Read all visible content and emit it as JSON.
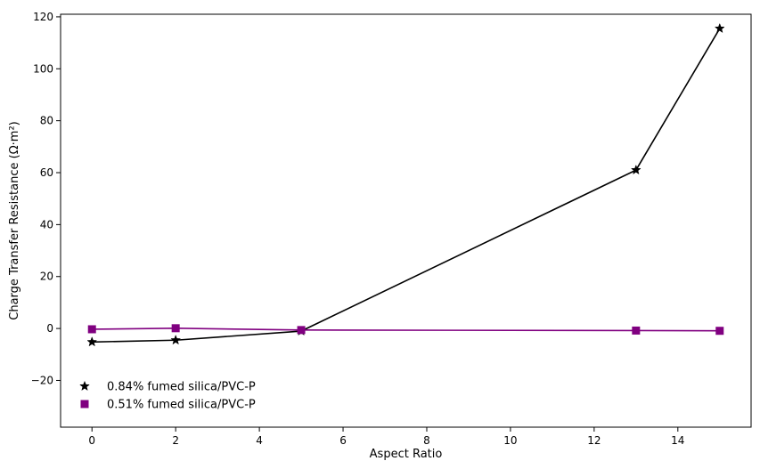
{
  "chart_data": {
    "type": "line",
    "title": "",
    "xlabel": "Aspect Ratio",
    "ylabel": "Charge Transfer Resistance (Ω·m²)",
    "xlim": [
      -0.75,
      15.75
    ],
    "ylim": [
      -38,
      121
    ],
    "xticks": [
      0,
      2,
      4,
      6,
      8,
      10,
      12,
      14
    ],
    "yticks": [
      -20,
      0,
      20,
      40,
      60,
      80,
      100,
      120
    ],
    "grid": false,
    "legend_position": "lower-left",
    "series": [
      {
        "name": "0.84% fumed silica/PVC-P",
        "color": "#000000",
        "marker": "star",
        "x": [
          0,
          2,
          5,
          13,
          15
        ],
        "y": [
          -5.2,
          -4.5,
          -1.0,
          61,
          115.5
        ]
      },
      {
        "name": "0.51% fumed silica/PVC-P",
        "color": "#800080",
        "marker": "square",
        "x": [
          0,
          2,
          5,
          13,
          15
        ],
        "y": [
          -0.3,
          0.1,
          -0.6,
          -0.8,
          -0.9
        ]
      }
    ]
  }
}
